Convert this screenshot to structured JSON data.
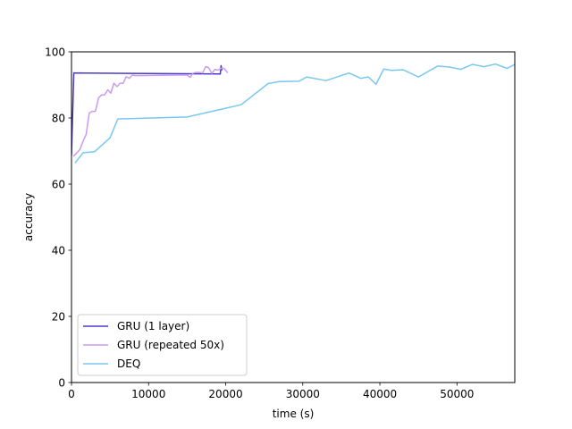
{
  "chart_data": {
    "type": "line",
    "title": "",
    "xlabel": "time (s)",
    "ylabel": "accuracy",
    "xlim": [
      0,
      57500
    ],
    "ylim": [
      0,
      100
    ],
    "xticks": [
      0,
      10000,
      20000,
      30000,
      40000,
      50000
    ],
    "xtick_labels": [
      "0",
      "10000",
      "20000",
      "30000",
      "40000",
      "50000"
    ],
    "yticks": [
      0,
      20,
      40,
      60,
      80,
      100
    ],
    "ytick_labels": [
      "0",
      "20",
      "40",
      "60",
      "80",
      "100"
    ],
    "grid": false,
    "legend_position": "lower-left",
    "series": [
      {
        "name": "GRU (1 layer)",
        "color": "#4b3cc8",
        "x": [
          0,
          300,
          19300,
          19400,
          19500
        ],
        "y": [
          69,
          93.6,
          93.3,
          95.8,
          94.6
        ]
      },
      {
        "name": "GRU (repeated 50x)",
        "color": "#c99cf0",
        "x": [
          300,
          700,
          1100,
          1500,
          1900,
          2300,
          2700,
          3100,
          3500,
          3900,
          4300,
          4700,
          5100,
          5500,
          5900,
          6300,
          6700,
          7100,
          7500,
          7900,
          8300,
          15000,
          15400,
          15800,
          16200,
          16600,
          17000,
          17400,
          17800,
          18200,
          18600,
          19000,
          19400,
          19800,
          20200
        ],
        "y": [
          68.5,
          69.5,
          70.5,
          73,
          75,
          81.5,
          82,
          82,
          86,
          87,
          87,
          88.5,
          87.5,
          90.5,
          89.5,
          90.5,
          90.5,
          92.5,
          92,
          93,
          92.8,
          93,
          92.3,
          93.6,
          93.8,
          93.8,
          93.6,
          95.5,
          95.2,
          93.5,
          94.7,
          94.5,
          95,
          95,
          93.8
        ]
      },
      {
        "name": "DEQ",
        "color": "#78c8f0",
        "x": [
          500,
          1500,
          3000,
          5000,
          6000,
          15000,
          22000,
          25500,
          27000,
          29500,
          30500,
          33000,
          36000,
          37500,
          38500,
          39500,
          40500,
          41500,
          43000,
          45000,
          47500,
          49000,
          50500,
          52000,
          53500,
          55000,
          56500,
          57500
        ],
        "y": [
          66.5,
          69.5,
          69.8,
          74,
          79.7,
          80.3,
          84,
          90.4,
          91,
          91.1,
          92.4,
          91.3,
          93.6,
          92,
          92.4,
          90.2,
          94.8,
          94.4,
          94.6,
          92.4,
          95.7,
          95.4,
          94.7,
          96.2,
          95.5,
          96.3,
          95,
          96.2
        ]
      }
    ]
  }
}
